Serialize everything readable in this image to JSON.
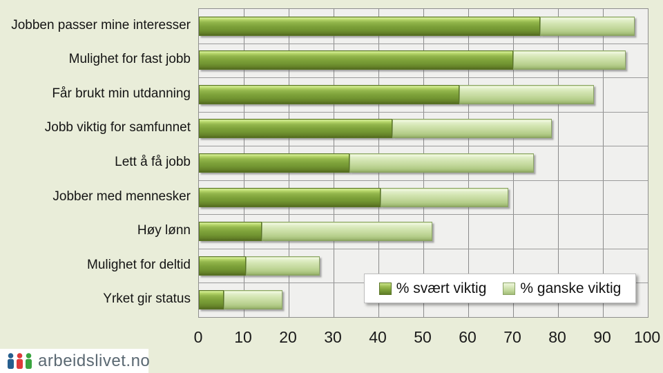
{
  "chart_data": {
    "type": "bar",
    "orientation": "horizontal",
    "stacked": true,
    "title": "",
    "xlabel": "",
    "ylabel": "",
    "xlim": [
      0,
      100
    ],
    "xticks": [
      0,
      10,
      20,
      30,
      40,
      50,
      60,
      70,
      80,
      90,
      100
    ],
    "grid": "vertical and horizontal category gridlines on",
    "legend_position": "inside-bottom-right",
    "categories": [
      "Jobben passer mine interesser",
      "Mulighet for fast jobb",
      "Får brukt min utdanning",
      "Jobb viktig for samfunnet",
      "Lett å få jobb",
      "Jobber med mennesker",
      "Høy lønn",
      "Mulighet for deltid",
      "Yrket gir status"
    ],
    "series": [
      {
        "name": "% svært viktig",
        "color": "#7ea23a",
        "values": [
          76,
          70,
          58,
          43,
          33.5,
          40.5,
          14,
          10.5,
          5.5
        ]
      },
      {
        "name": "% ganske viktig",
        "color": "#c2d89c",
        "values": [
          21,
          25,
          30,
          35.5,
          41,
          28.5,
          38,
          16.5,
          13
        ]
      }
    ],
    "stacked_totals": [
      97,
      95,
      88,
      78.5,
      74.5,
      69,
      52,
      27,
      18.5
    ]
  },
  "legend": {
    "items": [
      {
        "label": "% svært viktig",
        "swatch": "dark-green"
      },
      {
        "label": "% ganske viktig",
        "swatch": "light-green"
      }
    ]
  },
  "branding": {
    "logo_text": "arbeidslivet.no",
    "logo_icon": "three-people-icon",
    "icon_colors": [
      "#265e8e",
      "#df3a3a",
      "#3aa440"
    ]
  },
  "colors": {
    "background": "#e9edd9",
    "plot_background": "#f0f0ee",
    "gridline": "#8e8e8e",
    "series_dark": "#7ea23a",
    "series_light": "#c2d89c",
    "text": "#141414"
  }
}
